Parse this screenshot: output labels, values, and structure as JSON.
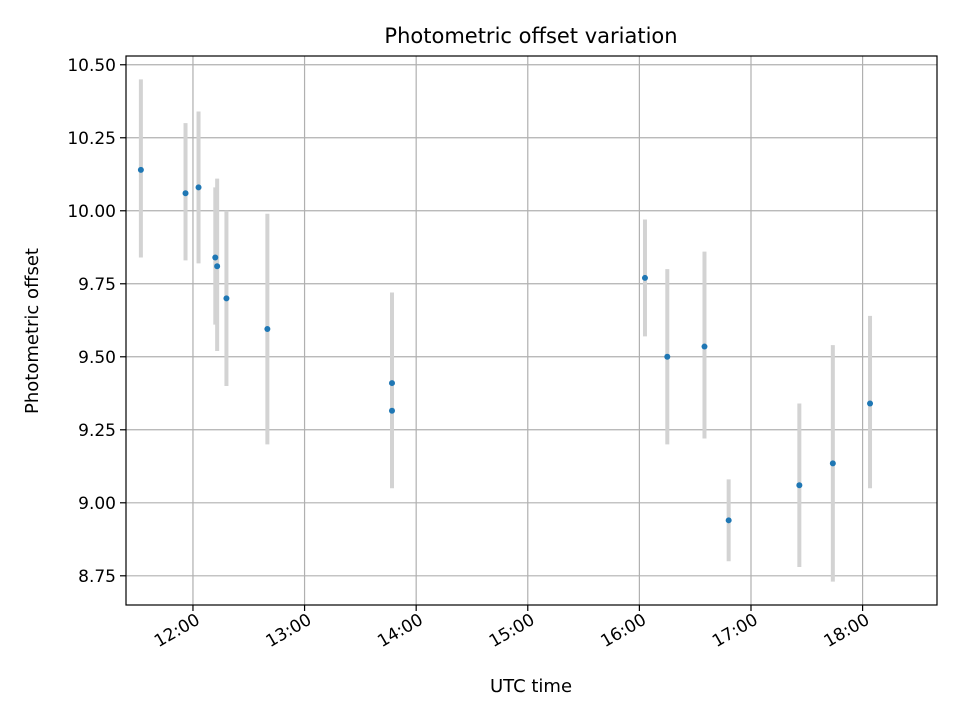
{
  "chart_data": {
    "type": "scatter",
    "title": "Photometric offset variation",
    "xlabel": "UTC time",
    "ylabel": "Photometric offset",
    "grid": true,
    "x_tick_labels": [
      "12:00",
      "13:00",
      "14:00",
      "15:00",
      "16:00",
      "17:00",
      "18:00"
    ],
    "y_tick_labels": [
      "8.75",
      "9.00",
      "9.25",
      "9.50",
      "9.75",
      "10.00",
      "10.25",
      "10.50"
    ],
    "y_ticks": [
      8.75,
      9.0,
      9.25,
      9.5,
      9.75,
      10.0,
      10.25,
      10.5
    ],
    "xlim": [
      "11:24",
      "18:40"
    ],
    "ylim": [
      8.65,
      10.53
    ],
    "series": [
      {
        "color": "#1f77b4",
        "errorbar_color": "#d3d3d3",
        "points": [
          {
            "x": "11:32",
            "y": 10.14,
            "low": 9.84,
            "high": 10.45
          },
          {
            "x": "11:56",
            "y": 10.06,
            "low": 9.83,
            "high": 10.3
          },
          {
            "x": "12:03",
            "y": 10.08,
            "low": 9.82,
            "high": 10.34
          },
          {
            "x": "12:12",
            "y": 9.84,
            "low": 9.61,
            "high": 10.08
          },
          {
            "x": "12:13",
            "y": 9.81,
            "low": 9.52,
            "high": 10.11
          },
          {
            "x": "12:18",
            "y": 9.7,
            "low": 9.4,
            "high": 10.0
          },
          {
            "x": "12:40",
            "y": 9.595,
            "low": 9.2,
            "high": 9.99
          },
          {
            "x": "13:47",
            "y": 9.41,
            "low": 9.1,
            "high": 9.72
          },
          {
            "x": "13:47",
            "y": 9.315,
            "low": 9.05,
            "high": 9.6
          },
          {
            "x": "16:03",
            "y": 9.77,
            "low": 9.57,
            "high": 9.97
          },
          {
            "x": "16:15",
            "y": 9.5,
            "low": 9.2,
            "high": 9.8
          },
          {
            "x": "16:35",
            "y": 9.535,
            "low": 9.22,
            "high": 9.86
          },
          {
            "x": "16:48",
            "y": 8.94,
            "low": 8.8,
            "high": 9.08
          },
          {
            "x": "17:26",
            "y": 9.06,
            "low": 8.78,
            "high": 9.34
          },
          {
            "x": "17:44",
            "y": 9.135,
            "low": 8.73,
            "high": 9.54
          },
          {
            "x": "18:04",
            "y": 9.34,
            "low": 9.05,
            "high": 9.64
          }
        ]
      }
    ]
  }
}
